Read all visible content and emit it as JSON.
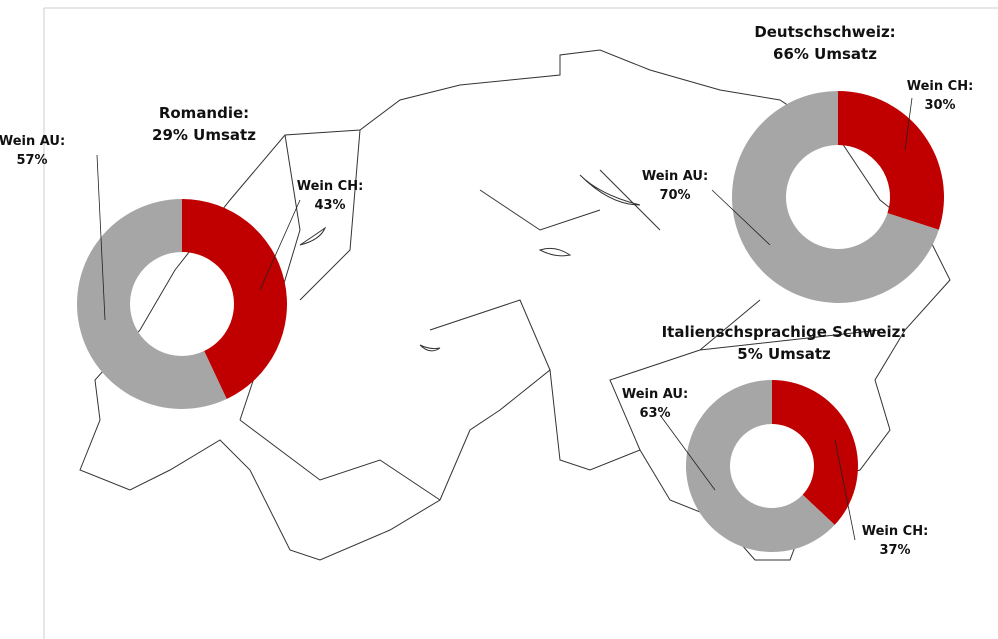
{
  "chart_data": [
    {
      "type": "pie",
      "title": "Romandie:",
      "subtitle": "29% Umsatz",
      "categories": [
        "Wein CH:",
        "Wein AU:"
      ],
      "values": [
        43,
        57
      ],
      "value_labels": [
        "43%",
        "57%"
      ],
      "colors": [
        "#c00000",
        "#a6a6a6"
      ],
      "donut": true
    },
    {
      "type": "pie",
      "title": "Deutschschweiz:",
      "subtitle": "66% Umsatz",
      "categories": [
        "Wein CH:",
        "Wein AU:"
      ],
      "values": [
        30,
        70
      ],
      "value_labels": [
        "30%",
        "70%"
      ],
      "colors": [
        "#c00000",
        "#a6a6a6"
      ],
      "donut": true
    },
    {
      "type": "pie",
      "title": "Italienschsprachige Schweiz:",
      "subtitle": "5% Umsatz",
      "categories": [
        "Wein CH:",
        "Wein AU:"
      ],
      "values": [
        37,
        63
      ],
      "value_labels": [
        "37%",
        "63%"
      ],
      "colors": [
        "#c00000",
        "#a6a6a6"
      ],
      "donut": true
    }
  ]
}
